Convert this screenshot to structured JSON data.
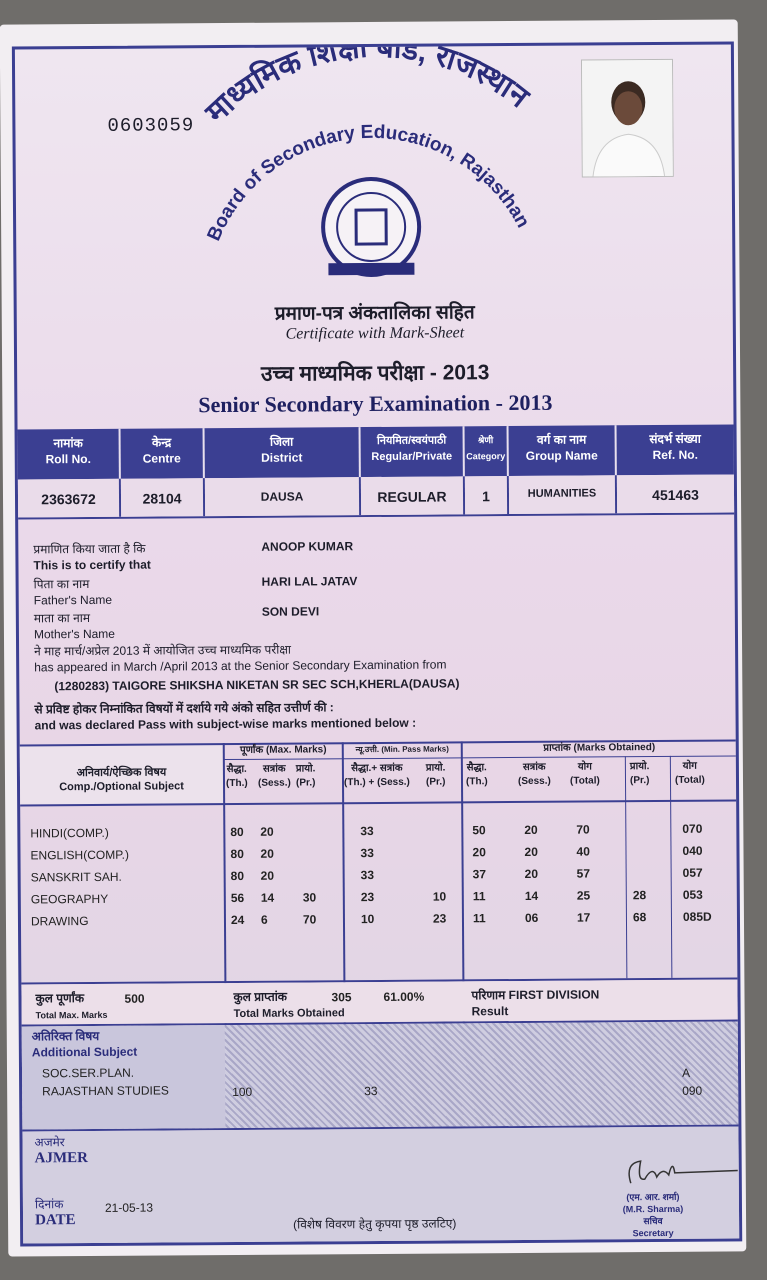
{
  "serial_no": "0603059",
  "board": {
    "hindi": "माध्यमिक शिक्षा बोर्ड, राजस्थान",
    "english": "Board of Secondary Education, Rajasthan"
  },
  "certificate": {
    "hindi": "प्रमाण-पत्र अंकतालिका सहित",
    "english": "Certificate with Mark-Sheet"
  },
  "exam": {
    "hindi": "उच्च माध्यमिक परीक्षा - 2013",
    "english": "Senior Secondary Examination - 2013"
  },
  "info_table": {
    "headers": [
      {
        "hindi": "नामांक",
        "english": "Roll No."
      },
      {
        "hindi": "केन्द्र",
        "english": "Centre"
      },
      {
        "hindi": "जिला",
        "english": "District"
      },
      {
        "hindi": "नियमित/स्वयंपाठी",
        "english": "Regular/Private"
      },
      {
        "hindi": "श्रेणी",
        "english": "Category"
      },
      {
        "hindi": "वर्ग का नाम",
        "english": "Group Name"
      },
      {
        "hindi": "संदर्भ संख्या",
        "english": "Ref. No."
      }
    ],
    "values": [
      "2363672",
      "28104",
      "DAUSA",
      "REGULAR",
      "1",
      "HUMANITIES",
      "451463"
    ]
  },
  "certify": {
    "certify_hindi": "प्रमाणित किया जाता है कि",
    "certify_english": "This is to certify that",
    "name": "ANOOP KUMAR",
    "father_hindi": "पिता का नाम",
    "father_english": "Father's Name",
    "father": "HARI LAL JATAV",
    "mother_hindi": "माता का नाम",
    "mother_english": "Mother's Name",
    "mother": "SON DEVI",
    "appeared_hindi": "ने माह मार्च/अप्रेल 2013 में आयोजित उच्च माध्यमिक परीक्षा",
    "appeared_english": "has appeared in March /April 2013 at the Senior Secondary Examination from",
    "school": "(1280283) TAIGORE SHIKSHA NIKETAN SR SEC SCH,KHERLA(DAUSA)",
    "declared_hindi": "से प्रविष्ट होकर निम्नांकित विषयों में दर्शाये गये अंको सहित उत्तीर्ण की :",
    "declared_english": "and was declared Pass with subject-wise marks mentioned below :"
  },
  "marks_table": {
    "subject_hindi": "अनिवार्य/ऐच्छिक विषय",
    "subject_english": "Comp./Optional Subject",
    "max_title": "पूर्णांक (Max. Marks)",
    "min_title": "न्यू.उत्ती. (Min. Pass Marks)",
    "obt_title": "प्राप्तांक (Marks Obtained)",
    "sub_headers": [
      [
        "सैद्धा.",
        "(Th.)"
      ],
      [
        "सत्रांक",
        "(Sess.)"
      ],
      [
        "प्रायो.",
        "(Pr.)"
      ],
      [
        "सैद्धा.+ सत्रांक",
        "(Th.) + (Sess.)"
      ],
      [
        "प्रायो.",
        "(Pr.)"
      ],
      [
        "सैद्धा.",
        "(Th.)"
      ],
      [
        "सत्रांक",
        "(Sess.)"
      ],
      [
        "योग",
        "(Total)"
      ],
      [
        "प्रायो.",
        "(Pr.)"
      ],
      [
        "योग",
        "(Total)"
      ]
    ],
    "rows": [
      {
        "subject": "HINDI(COMP.)",
        "max_th": "80",
        "max_sess": "20",
        "max_pr": "",
        "min_th_sess": "33",
        "min_pr": "",
        "obt_th": "50",
        "obt_sess": "20",
        "obt_total": "70",
        "obt_pr": "",
        "total": "070"
      },
      {
        "subject": "ENGLISH(COMP.)",
        "max_th": "80",
        "max_sess": "20",
        "max_pr": "",
        "min_th_sess": "33",
        "min_pr": "",
        "obt_th": "20",
        "obt_sess": "20",
        "obt_total": "40",
        "obt_pr": "",
        "total": "040"
      },
      {
        "subject": "SANSKRIT SAH.",
        "max_th": "80",
        "max_sess": "20",
        "max_pr": "",
        "min_th_sess": "33",
        "min_pr": "",
        "obt_th": "37",
        "obt_sess": "20",
        "obt_total": "57",
        "obt_pr": "",
        "total": "057"
      },
      {
        "subject": "GEOGRAPHY",
        "max_th": "56",
        "max_sess": "14",
        "max_pr": "30",
        "min_th_sess": "23",
        "min_pr": "10",
        "obt_th": "11",
        "obt_sess": "14",
        "obt_total": "25",
        "obt_pr": "28",
        "total": "053"
      },
      {
        "subject": "DRAWING",
        "max_th": "24",
        "max_sess": "6",
        "max_pr": "70",
        "min_th_sess": "10",
        "min_pr": "23",
        "obt_th": "11",
        "obt_sess": "06",
        "obt_total": "17",
        "obt_pr": "68",
        "total": "085D"
      }
    ]
  },
  "totals": {
    "max_hindi": "कुल पूर्णांक",
    "max_english": "Total Max. Marks",
    "max": "500",
    "obt_hindi": "कुल प्राप्तांक",
    "obt_english": "Total Marks Obtained",
    "obtained": "305",
    "percent": "61.00%",
    "result_hindi": "परिणाम",
    "result": "FIRST DIVISION",
    "result_english": "Result"
  },
  "additional": {
    "hindi": "अतिरिक्त विषय",
    "english": "Additional Subject",
    "subjects": [
      "SOC.SER.PLAN.",
      "RAJASTHAN STUDIES"
    ],
    "max": "100",
    "min": "33",
    "grade": "A",
    "marks": "090"
  },
  "footer": {
    "place_hindi": "अजमेर",
    "place": "AJMER",
    "date_hindi": "दिनांक",
    "date_label": "DATE",
    "date": "21-05-13",
    "note": "(विशेष विवरण हेतु कृपया पृष्ठ उलटिए)",
    "sign_hindi": "(एम. आर. शर्मा)",
    "sign_name": "(M.R. Sharma)",
    "sign_title_hindi": "सचिव",
    "sign_title": "Secretary"
  },
  "colors": {
    "border": "#3b3f92",
    "paper": "#efe6f0"
  }
}
